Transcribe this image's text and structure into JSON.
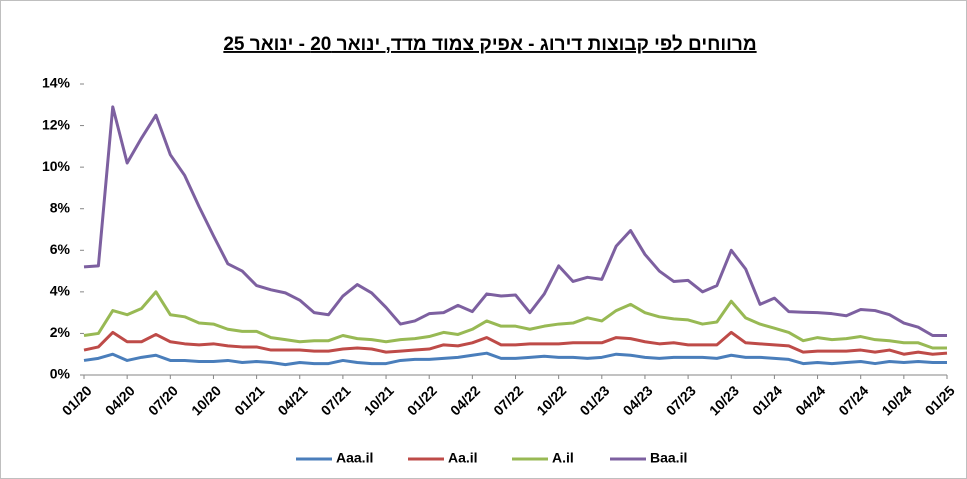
{
  "chart_data": {
    "type": "line",
    "title": "מרווחים לפי קבוצות דירוג - אפיק צמוד מדד, ינואר 20 - ינואר 25",
    "categories": [
      "01/20",
      null,
      null,
      "04/20",
      null,
      null,
      "07/20",
      null,
      null,
      "10/20",
      null,
      null,
      "01/21",
      null,
      null,
      "04/21",
      null,
      null,
      "07/21",
      null,
      null,
      "10/21",
      null,
      null,
      "01/22",
      null,
      null,
      "04/22",
      null,
      null,
      "07/22",
      null,
      null,
      "10/22",
      null,
      null,
      "01/23",
      null,
      null,
      "04/23",
      null,
      null,
      "07/23",
      null,
      null,
      "10/23",
      null,
      null,
      "01/24",
      null,
      null,
      "04/24",
      null,
      null,
      "07/24",
      null,
      null,
      "10/24",
      null,
      null,
      "01/25"
    ],
    "series": [
      {
        "name": "Aaa.il",
        "color": "#4a7ebb",
        "values": [
          0.7,
          0.8,
          1.0,
          0.7,
          0.85,
          0.95,
          0.7,
          0.7,
          0.65,
          0.65,
          0.7,
          0.6,
          0.65,
          0.6,
          0.5,
          0.6,
          0.55,
          0.55,
          0.7,
          0.6,
          0.55,
          0.55,
          0.7,
          0.75,
          0.75,
          0.8,
          0.85,
          0.95,
          1.05,
          0.8,
          0.8,
          0.85,
          0.9,
          0.85,
          0.85,
          0.8,
          0.85,
          1.0,
          0.95,
          0.85,
          0.8,
          0.85,
          0.85,
          0.85,
          0.8,
          0.95,
          0.85,
          0.85,
          0.8,
          0.75,
          0.55,
          0.6,
          0.55,
          0.6,
          0.65,
          0.55,
          0.65,
          0.6,
          0.65,
          0.6,
          0.6
        ]
      },
      {
        "name": "Aa.il",
        "color": "#be4b48",
        "values": [
          1.2,
          1.35,
          2.05,
          1.6,
          1.6,
          1.95,
          1.6,
          1.5,
          1.45,
          1.5,
          1.4,
          1.35,
          1.35,
          1.2,
          1.2,
          1.2,
          1.15,
          1.15,
          1.25,
          1.3,
          1.25,
          1.1,
          1.15,
          1.2,
          1.25,
          1.45,
          1.4,
          1.55,
          1.8,
          1.45,
          1.45,
          1.5,
          1.5,
          1.5,
          1.55,
          1.55,
          1.55,
          1.8,
          1.75,
          1.6,
          1.5,
          1.55,
          1.45,
          1.45,
          1.45,
          2.05,
          1.55,
          1.5,
          1.45,
          1.4,
          1.1,
          1.15,
          1.15,
          1.15,
          1.2,
          1.1,
          1.2,
          1.0,
          1.1,
          1.0,
          1.05
        ]
      },
      {
        "name": "A.il",
        "color": "#98b954",
        "values": [
          1.9,
          2.0,
          3.1,
          2.9,
          3.2,
          4.0,
          2.9,
          2.8,
          2.5,
          2.45,
          2.2,
          2.1,
          2.1,
          1.8,
          1.7,
          1.6,
          1.65,
          1.65,
          1.9,
          1.75,
          1.7,
          1.6,
          1.7,
          1.75,
          1.85,
          2.05,
          1.95,
          2.2,
          2.6,
          2.35,
          2.35,
          2.2,
          2.35,
          2.45,
          2.5,
          2.75,
          2.6,
          3.1,
          3.4,
          3.0,
          2.8,
          2.7,
          2.65,
          2.45,
          2.55,
          3.55,
          2.75,
          2.45,
          2.25,
          2.05,
          1.65,
          1.8,
          1.7,
          1.75,
          1.85,
          1.7,
          1.65,
          1.55,
          1.55,
          1.3,
          1.3
        ]
      },
      {
        "name": "Baa.il",
        "color": "#7d60a0",
        "values": [
          5.2,
          5.25,
          12.9,
          10.2,
          11.4,
          12.5,
          10.6,
          9.6,
          8.1,
          6.7,
          5.35,
          5.0,
          4.3,
          4.1,
          3.95,
          3.6,
          3.0,
          2.9,
          3.8,
          4.35,
          3.95,
          3.25,
          2.45,
          2.6,
          2.95,
          3.0,
          3.35,
          3.05,
          3.9,
          3.8,
          3.85,
          3.0,
          3.9,
          5.25,
          4.5,
          4.7,
          4.6,
          6.2,
          6.95,
          5.8,
          5.0,
          4.5,
          4.55,
          4.0,
          4.3,
          6.0,
          5.1,
          3.4,
          3.7,
          3.05,
          3.02,
          3.0,
          2.95,
          2.85,
          3.15,
          3.1,
          2.9,
          2.5,
          2.3,
          1.9,
          1.9
        ]
      }
    ],
    "ylim": [
      0,
      14
    ],
    "yticks": [
      {
        "value": 0,
        "label": "0%"
      },
      {
        "value": 2,
        "label": "2%"
      },
      {
        "value": 4,
        "label": "4%"
      },
      {
        "value": 6,
        "label": "6%"
      },
      {
        "value": 8,
        "label": "8%"
      },
      {
        "value": 10,
        "label": "10%"
      },
      {
        "value": 12,
        "label": "12%"
      },
      {
        "value": 14,
        "label": "14%"
      }
    ],
    "grid": false,
    "legend": "bottom"
  }
}
